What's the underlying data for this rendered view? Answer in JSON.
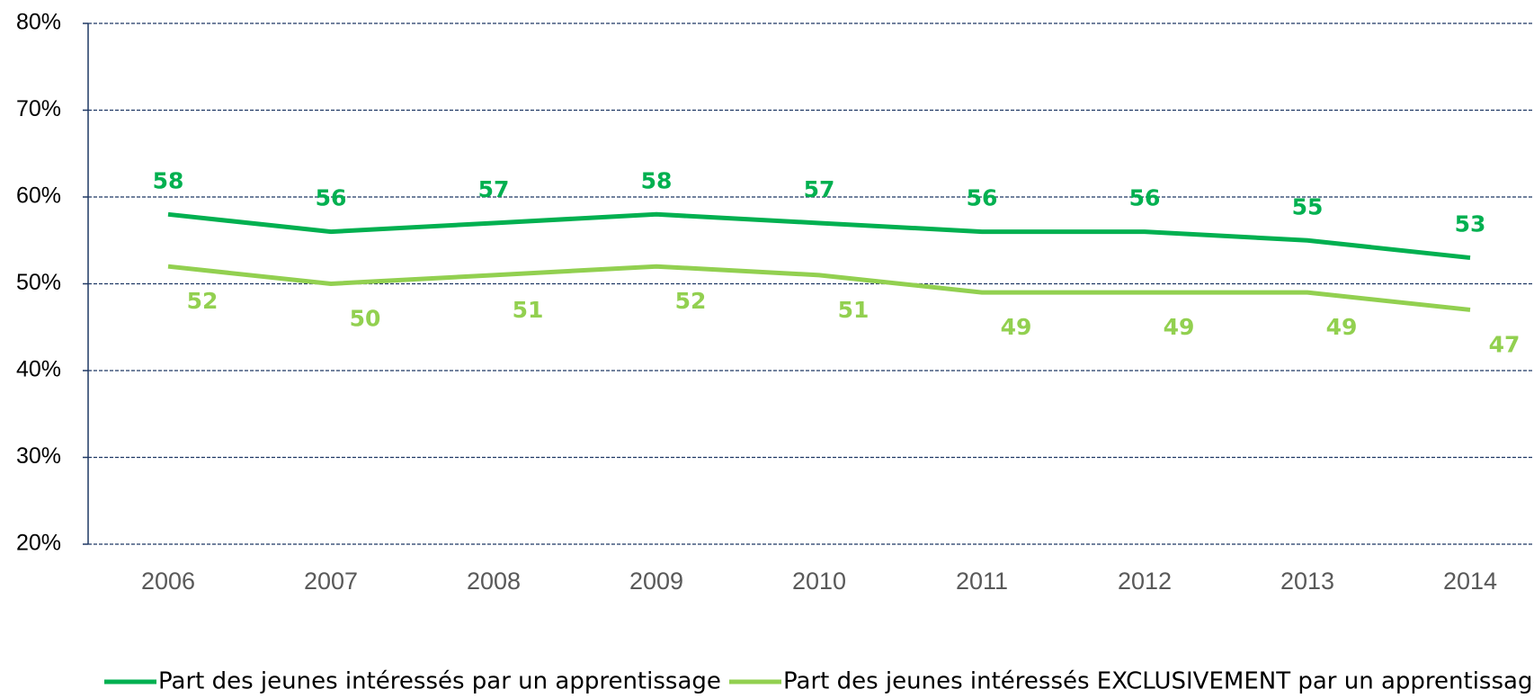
{
  "chart_data": {
    "type": "line",
    "categories": [
      "2006",
      "2007",
      "2008",
      "2009",
      "2010",
      "2011",
      "2012",
      "2013",
      "2014"
    ],
    "series": [
      {
        "name": "Part des jeunes intéressés par un apprentissage",
        "color": "#00b050",
        "values": [
          58,
          56,
          57,
          58,
          57,
          56,
          56,
          55,
          53
        ]
      },
      {
        "name": "Part des jeunes intéressés EXCLUSIVEMENT par un apprentissage",
        "color": "#92d050",
        "values": [
          52,
          50,
          51,
          52,
          51,
          49,
          49,
          49,
          47
        ]
      }
    ],
    "ylim": [
      20,
      80
    ],
    "yticks": [
      {
        "value": 20,
        "label": "20%"
      },
      {
        "value": 30,
        "label": "30%"
      },
      {
        "value": 40,
        "label": "40%"
      },
      {
        "value": 50,
        "label": "50%"
      },
      {
        "value": 60,
        "label": "60%"
      },
      {
        "value": 70,
        "label": "70%"
      },
      {
        "value": 80,
        "label": "80%"
      }
    ],
    "grid": true,
    "legend": "bottom"
  }
}
